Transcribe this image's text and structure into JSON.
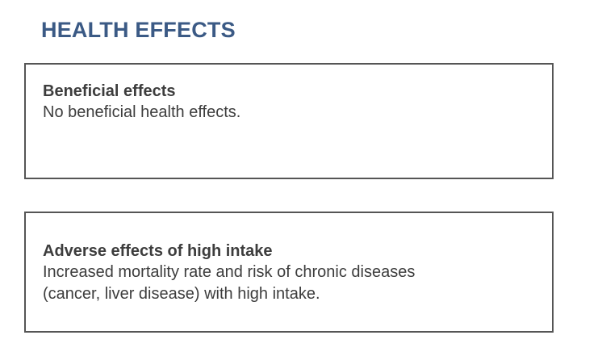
{
  "section": {
    "title": "HEALTH EFFECTS"
  },
  "cards": [
    {
      "heading": "Beneficial effects",
      "text": "No beneficial health effects."
    },
    {
      "heading": "Adverse effects of high intake",
      "text_lines": [
        "Increased mortality rate and risk of chronic diseases",
        "(cancer, liver disease) with high intake."
      ]
    }
  ],
  "colors": {
    "title": "#3b5a85",
    "text": "#3d3d3d",
    "border": "#555555",
    "background": "#ffffff"
  }
}
